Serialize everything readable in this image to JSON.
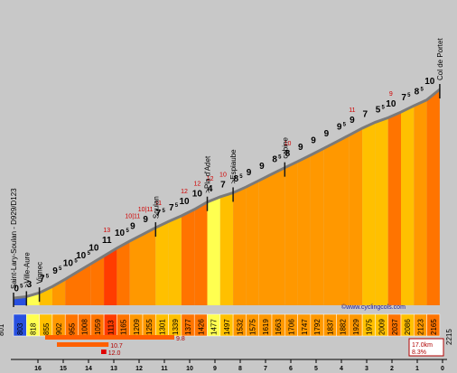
{
  "chart_data": {
    "type": "area",
    "x_unit": "km",
    "y_unit": "m",
    "distance_labels": [
      "16",
      "15",
      "14",
      "13",
      "12",
      "11",
      "10",
      "9",
      "8",
      "7",
      "6",
      "5",
      "4",
      "3",
      "2",
      "1",
      "0"
    ],
    "elevations": [
      803,
      818,
      855,
      902,
      955,
      1008,
      1059,
      1113,
      1165,
      1209,
      1255,
      1301,
      1339,
      1377,
      1426,
      1477,
      1497,
      1532,
      1575,
      1619,
      1663,
      1706,
      1747,
      1792,
      1837,
      1882,
      1929,
      1975,
      2009,
      2037,
      2086,
      2123,
      2165
    ],
    "gradients": [
      {
        "b": "0",
        "s": "5",
        "sm": ""
      },
      {
        "b": "3",
        "s": "",
        "sm": ""
      },
      {
        "b": "7",
        "s": "5",
        "sm": ""
      },
      {
        "b": "9",
        "s": "5",
        "sm": ""
      },
      {
        "b": "10",
        "s": "5",
        "sm": ""
      },
      {
        "b": "10",
        "s": "5",
        "sm": ""
      },
      {
        "b": "10",
        "s": "",
        "sm": ""
      },
      {
        "b": "11",
        "s": "",
        "sm": "13"
      },
      {
        "b": "10",
        "s": "5",
        "sm": ""
      },
      {
        "b": "9",
        "s": "",
        "sm": "10|11"
      },
      {
        "b": "9",
        "s": "",
        "sm": "10|11"
      },
      {
        "b": "7",
        "s": "5",
        "sm": "11"
      },
      {
        "b": "7",
        "s": "5",
        "sm": ""
      },
      {
        "b": "10",
        "s": "",
        "sm": "12"
      },
      {
        "b": "10",
        "s": "",
        "sm": "12"
      },
      {
        "b": "4",
        "s": "",
        "sm": "12"
      },
      {
        "b": "7",
        "s": "",
        "sm": "10"
      },
      {
        "b": "8",
        "s": "5",
        "sm": ""
      },
      {
        "b": "9",
        "s": "",
        "sm": ""
      },
      {
        "b": "9",
        "s": "",
        "sm": ""
      },
      {
        "b": "8",
        "s": "5",
        "sm": ""
      },
      {
        "b": "8",
        "s": "",
        "sm": "10"
      },
      {
        "b": "9",
        "s": "",
        "sm": ""
      },
      {
        "b": "9",
        "s": "",
        "sm": ""
      },
      {
        "b": "9",
        "s": "",
        "sm": ""
      },
      {
        "b": "9",
        "s": "5",
        "sm": ""
      },
      {
        "b": "9",
        "s": "",
        "sm": "11"
      },
      {
        "b": "7",
        "s": "",
        "sm": ""
      },
      {
        "b": "5",
        "s": "5",
        "sm": ""
      },
      {
        "b": "10",
        "s": "",
        "sm": "9"
      },
      {
        "b": "7",
        "s": "5",
        "sm": ""
      },
      {
        "b": "8",
        "s": "5",
        "sm": ""
      },
      {
        "b": "10",
        "s": "",
        "sm": ""
      }
    ],
    "start_elevation": "801",
    "end_elevation": "2215",
    "places": [
      {
        "label": "Saint-Lary-Soulan - D929/D123",
        "seg": 0
      },
      {
        "label": ">Ville-Aure",
        "seg": 1
      },
      {
        "label": "Vignec",
        "seg": 2
      },
      {
        "label": "Soulan",
        "seg": 11
      },
      {
        "label": ">Pla d'Adet",
        "seg": 15
      },
      {
        "label": ">Espiaube",
        "seg": 17
      },
      {
        "label": "cabine",
        "seg": 21
      },
      {
        "label": "Col de Portet",
        "seg": 33
      }
    ],
    "steep_bars": [
      {
        "label": "9.8",
        "length_km": 5.0
      },
      {
        "label": "10.7",
        "length_km": 2.0
      },
      {
        "label": "12.0",
        "length_km": 0.2
      }
    ],
    "summary": {
      "distance": "17.0km",
      "average": "8.3%"
    },
    "credit": "©www.cyclingcols.com",
    "colors": {
      "background": "#c8c8c8",
      "bands": [
        "#2850e0",
        "#ffff50",
        "#ffc000",
        "#ff9800",
        "#ff7400",
        "#ff3c00"
      ],
      "bar": "#ff6000",
      "bar_red": "#e00000",
      "summary_red": "#b00000",
      "road": "#7a7a7a"
    }
  }
}
